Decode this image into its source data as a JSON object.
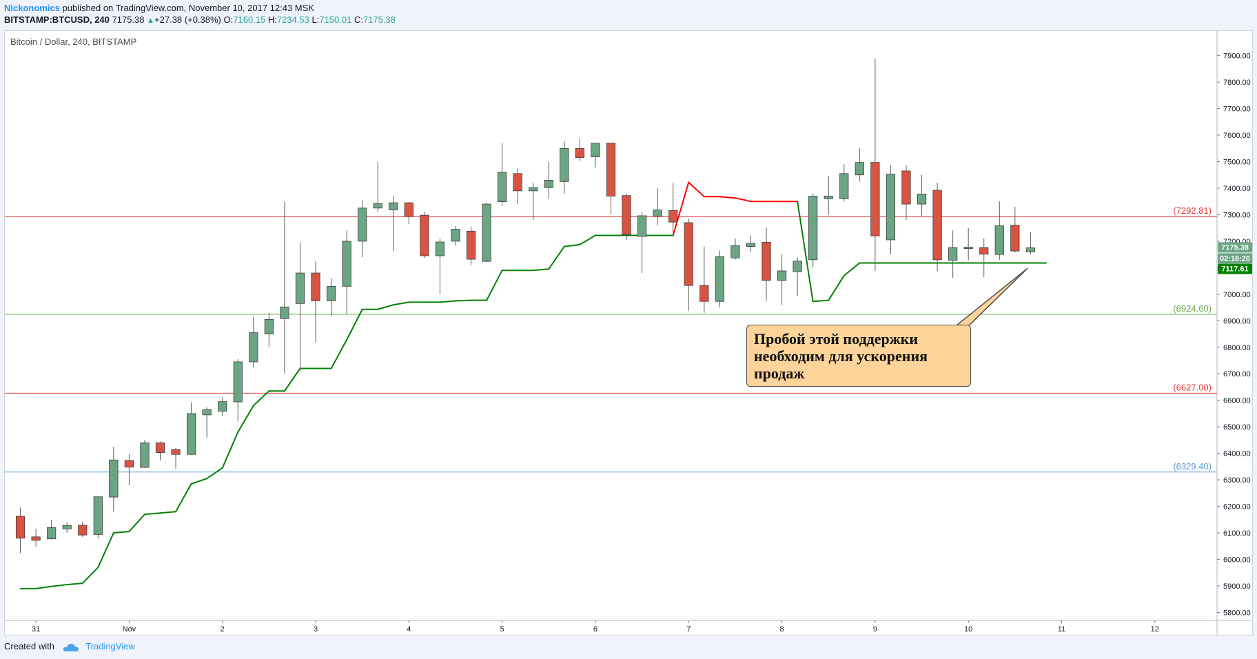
{
  "header": {
    "author": "Nickonomics",
    "published_text": "published on TradingView.com, November 10, 2017 12:43 MSK",
    "symbol": "BITSTAMP:BTCUSD, 240",
    "last": "7175.38",
    "change_arrow": "▲",
    "change": "+27.38 (+0.38%)",
    "o_label": "O:",
    "o_value": "7160.15",
    "h_label": "H:",
    "h_value": "7234.53",
    "l_label": "L:",
    "l_value": "7150.01",
    "c_label": "C:",
    "c_value": "7175.38"
  },
  "chart_title": "Bitcoin / Dollar, 240, BITSTAMP",
  "footer": {
    "created_with": "Created with",
    "brand": "TradingView"
  },
  "callout": {
    "line1": "Пробой этой поддержки",
    "line2": "необходим для ускорения",
    "line3": "продаж"
  },
  "colors": {
    "up_fill": "#6ba583",
    "down_fill": "#d75442",
    "wick": "#5b5b5b",
    "supertrend_up": "#008000",
    "supertrend_down": "#ff0000",
    "level_red": "#e53935",
    "level_green": "#6aa84f",
    "level_blue": "#5b9bd5",
    "callout_bg": "#fed49a"
  },
  "chart_data": {
    "type": "candlestick",
    "y_ticks": [
      "5800.00",
      "5900.00",
      "6000.00",
      "6100.00",
      "6200.00",
      "6300.00",
      "6400.00",
      "6500.00",
      "6600.00",
      "6700.00",
      "6800.00",
      "6900.00",
      "7000.00",
      "7100.00",
      "7200.00",
      "7300.00",
      "7400.00",
      "7500.00",
      "7600.00",
      "7700.00",
      "7800.00",
      "7900.00"
    ],
    "y_range": [
      5770,
      7990
    ],
    "x_ticks": [
      "31",
      "Nov",
      "2",
      "3",
      "4",
      "5",
      "6",
      "7",
      "8",
      "9",
      "10",
      "11",
      "12"
    ],
    "x_range": [
      "Oct 30 16:00",
      "Nov 12 16:00"
    ],
    "candles": [
      {
        "t": "Oct 30 20:00",
        "o": 6163,
        "h": 6195,
        "l": 6024,
        "c": 6080
      },
      {
        "t": "Oct 31 00:00",
        "o": 6085,
        "h": 6115,
        "l": 6048,
        "c": 6072
      },
      {
        "t": "Oct 31 04:00",
        "o": 6078,
        "h": 6150,
        "l": 6075,
        "c": 6120
      },
      {
        "t": "Oct 31 08:00",
        "o": 6115,
        "h": 6140,
        "l": 6100,
        "c": 6128
      },
      {
        "t": "Oct 31 12:00",
        "o": 6129,
        "h": 6142,
        "l": 6085,
        "c": 6092
      },
      {
        "t": "Oct 31 16:00",
        "o": 6094,
        "h": 6240,
        "l": 6080,
        "c": 6236
      },
      {
        "t": "Oct 31 20:00",
        "o": 6235,
        "h": 6425,
        "l": 6180,
        "c": 6375
      },
      {
        "t": "Nov 1 00:00",
        "o": 6373,
        "h": 6397,
        "l": 6280,
        "c": 6348
      },
      {
        "t": "Nov 1 04:00",
        "o": 6347,
        "h": 6450,
        "l": 6345,
        "c": 6440
      },
      {
        "t": "Nov 1 08:00",
        "o": 6440,
        "h": 6445,
        "l": 6373,
        "c": 6403
      },
      {
        "t": "Nov 1 12:00",
        "o": 6414,
        "h": 6420,
        "l": 6341,
        "c": 6396
      },
      {
        "t": "Nov 1 16:00",
        "o": 6396,
        "h": 6592,
        "l": 6394,
        "c": 6550
      },
      {
        "t": "Nov 1 20:00",
        "o": 6545,
        "h": 6573,
        "l": 6460,
        "c": 6565
      },
      {
        "t": "Nov 2 00:00",
        "o": 6559,
        "h": 6610,
        "l": 6540,
        "c": 6595
      },
      {
        "t": "Nov 2 04:00",
        "o": 6594,
        "h": 6755,
        "l": 6520,
        "c": 6745
      },
      {
        "t": "Nov 2 08:00",
        "o": 6745,
        "h": 6915,
        "l": 6723,
        "c": 6855
      },
      {
        "t": "Nov 2 12:00",
        "o": 6850,
        "h": 6930,
        "l": 6800,
        "c": 6905
      },
      {
        "t": "Nov 2 16:00",
        "o": 6908,
        "h": 7350,
        "l": 6700,
        "c": 6952
      },
      {
        "t": "Nov 2 20:00",
        "o": 6965,
        "h": 7195,
        "l": 6712,
        "c": 7080
      },
      {
        "t": "Nov 3 00:00",
        "o": 7080,
        "h": 7125,
        "l": 6820,
        "c": 6975
      },
      {
        "t": "Nov 3 04:00",
        "o": 6975,
        "h": 7060,
        "l": 6920,
        "c": 7030
      },
      {
        "t": "Nov 3 08:00",
        "o": 7030,
        "h": 7240,
        "l": 6925,
        "c": 7200
      },
      {
        "t": "Nov 3 12:00",
        "o": 7200,
        "h": 7355,
        "l": 7140,
        "c": 7325
      },
      {
        "t": "Nov 3 16:00",
        "o": 7325,
        "h": 7500,
        "l": 7310,
        "c": 7342
      },
      {
        "t": "Nov 3 20:00",
        "o": 7318,
        "h": 7372,
        "l": 7162,
        "c": 7345
      },
      {
        "t": "Nov 4 00:00",
        "o": 7345,
        "h": 7348,
        "l": 7264,
        "c": 7294
      },
      {
        "t": "Nov 4 04:00",
        "o": 7298,
        "h": 7310,
        "l": 7136,
        "c": 7145
      },
      {
        "t": "Nov 4 08:00",
        "o": 7145,
        "h": 7210,
        "l": 7000,
        "c": 7197
      },
      {
        "t": "Nov 4 12:00",
        "o": 7200,
        "h": 7258,
        "l": 7183,
        "c": 7245
      },
      {
        "t": "Nov 4 16:00",
        "o": 7238,
        "h": 7255,
        "l": 7111,
        "c": 7132
      },
      {
        "t": "Nov 4 20:00",
        "o": 7124,
        "h": 7345,
        "l": 7122,
        "c": 7340
      },
      {
        "t": "Nov 5 00:00",
        "o": 7349,
        "h": 7570,
        "l": 7334,
        "c": 7460
      },
      {
        "t": "Nov 5 04:00",
        "o": 7455,
        "h": 7474,
        "l": 7340,
        "c": 7390
      },
      {
        "t": "Nov 5 08:00",
        "o": 7390,
        "h": 7420,
        "l": 7280,
        "c": 7402
      },
      {
        "t": "Nov 5 12:00",
        "o": 7402,
        "h": 7500,
        "l": 7360,
        "c": 7430
      },
      {
        "t": "Nov 5 16:00",
        "o": 7425,
        "h": 7578,
        "l": 7380,
        "c": 7550
      },
      {
        "t": "Nov 5 20:00",
        "o": 7550,
        "h": 7588,
        "l": 7503,
        "c": 7515
      },
      {
        "t": "Nov 6 00:00",
        "o": 7518,
        "h": 7570,
        "l": 7478,
        "c": 7570
      },
      {
        "t": "Nov 6 04:00",
        "o": 7570,
        "h": 7568,
        "l": 7300,
        "c": 7370
      },
      {
        "t": "Nov 6 08:00",
        "o": 7372,
        "h": 7380,
        "l": 7205,
        "c": 7225
      },
      {
        "t": "Nov 6 12:00",
        "o": 7218,
        "h": 7310,
        "l": 7080,
        "c": 7296
      },
      {
        "t": "Nov 6 16:00",
        "o": 7295,
        "h": 7400,
        "l": 7260,
        "c": 7318
      },
      {
        "t": "Nov 6 20:00",
        "o": 7316,
        "h": 7420,
        "l": 7218,
        "c": 7272
      },
      {
        "t": "Nov 7 00:00",
        "o": 7270,
        "h": 7285,
        "l": 6938,
        "c": 7033
      },
      {
        "t": "Nov 7 04:00",
        "o": 7033,
        "h": 7180,
        "l": 6930,
        "c": 6973
      },
      {
        "t": "Nov 7 08:00",
        "o": 6973,
        "h": 7165,
        "l": 6950,
        "c": 7142
      },
      {
        "t": "Nov 7 12:00",
        "o": 7137,
        "h": 7210,
        "l": 7130,
        "c": 7183
      },
      {
        "t": "Nov 7 16:00",
        "o": 7180,
        "h": 7222,
        "l": 7160,
        "c": 7192
      },
      {
        "t": "Nov 7 20:00",
        "o": 7196,
        "h": 7252,
        "l": 6975,
        "c": 7052
      },
      {
        "t": "Nov 8 00:00",
        "o": 7052,
        "h": 7150,
        "l": 6960,
        "c": 7088
      },
      {
        "t": "Nov 8 04:00",
        "o": 7085,
        "h": 7140,
        "l": 6993,
        "c": 7125
      },
      {
        "t": "Nov 8 08:00",
        "o": 7130,
        "h": 7380,
        "l": 7100,
        "c": 7370
      },
      {
        "t": "Nov 8 12:00",
        "o": 7360,
        "h": 7445,
        "l": 7300,
        "c": 7370
      },
      {
        "t": "Nov 8 16:00",
        "o": 7360,
        "h": 7490,
        "l": 7350,
        "c": 7455
      },
      {
        "t": "Nov 8 20:00",
        "o": 7450,
        "h": 7550,
        "l": 7425,
        "c": 7497
      },
      {
        "t": "Nov 9 00:00",
        "o": 7497,
        "h": 7890,
        "l": 7087,
        "c": 7220
      },
      {
        "t": "Nov 9 04:00",
        "o": 7205,
        "h": 7487,
        "l": 7150,
        "c": 7453
      },
      {
        "t": "Nov 9 08:00",
        "o": 7465,
        "h": 7487,
        "l": 7280,
        "c": 7340
      },
      {
        "t": "Nov 9 12:00",
        "o": 7340,
        "h": 7450,
        "l": 7295,
        "c": 7378
      },
      {
        "t": "Nov 9 16:00",
        "o": 7392,
        "h": 7420,
        "l": 7087,
        "c": 7130
      },
      {
        "t": "Nov 9 20:00",
        "o": 7128,
        "h": 7240,
        "l": 7062,
        "c": 7176
      },
      {
        "t": "Nov 10 00:00",
        "o": 7172,
        "h": 7250,
        "l": 7127,
        "c": 7178
      },
      {
        "t": "Nov 10 04:00",
        "o": 7176,
        "h": 7210,
        "l": 7065,
        "c": 7151
      },
      {
        "t": "Nov 10 08:00",
        "o": 7150,
        "h": 7350,
        "l": 7130,
        "c": 7258
      },
      {
        "t": "Nov 10 12:00",
        "o": 7260,
        "h": 7330,
        "l": 7158,
        "c": 7163
      },
      {
        "t": "Nov 10 16:00",
        "o": 7160,
        "h": 7235,
        "l": 7150,
        "c": 7175
      }
    ],
    "supertrend": [
      {
        "t": "Oct 30 20:00",
        "v": 5890,
        "trend": "up"
      },
      {
        "t": "Oct 31 00:00",
        "v": 5890,
        "trend": "up"
      },
      {
        "t": "Oct 31 04:00",
        "v": 5898,
        "trend": "up"
      },
      {
        "t": "Oct 31 08:00",
        "v": 5905,
        "trend": "up"
      },
      {
        "t": "Oct 31 12:00",
        "v": 5910,
        "trend": "up"
      },
      {
        "t": "Oct 31 16:00",
        "v": 5970,
        "trend": "up"
      },
      {
        "t": "Oct 31 20:00",
        "v": 6100,
        "trend": "up"
      },
      {
        "t": "Nov 1 00:00",
        "v": 6105,
        "trend": "up"
      },
      {
        "t": "Nov 1 04:00",
        "v": 6170,
        "trend": "up"
      },
      {
        "t": "Nov 1 08:00",
        "v": 6175,
        "trend": "up"
      },
      {
        "t": "Nov 1 12:00",
        "v": 6180,
        "trend": "up"
      },
      {
        "t": "Nov 1 16:00",
        "v": 6285,
        "trend": "up"
      },
      {
        "t": "Nov 1 20:00",
        "v": 6305,
        "trend": "up"
      },
      {
        "t": "Nov 2 00:00",
        "v": 6345,
        "trend": "up"
      },
      {
        "t": "Nov 2 04:00",
        "v": 6480,
        "trend": "up"
      },
      {
        "t": "Nov 2 08:00",
        "v": 6580,
        "trend": "up"
      },
      {
        "t": "Nov 2 12:00",
        "v": 6635,
        "trend": "up"
      },
      {
        "t": "Nov 2 16:00",
        "v": 6635,
        "trend": "up"
      },
      {
        "t": "Nov 2 20:00",
        "v": 6720,
        "trend": "up"
      },
      {
        "t": "Nov 3 00:00",
        "v": 6720,
        "trend": "up"
      },
      {
        "t": "Nov 3 04:00",
        "v": 6720,
        "trend": "up"
      },
      {
        "t": "Nov 3 08:00",
        "v": 6828,
        "trend": "up"
      },
      {
        "t": "Nov 3 12:00",
        "v": 6943,
        "trend": "up"
      },
      {
        "t": "Nov 3 16:00",
        "v": 6943,
        "trend": "up"
      },
      {
        "t": "Nov 3 20:00",
        "v": 6960,
        "trend": "up"
      },
      {
        "t": "Nov 4 00:00",
        "v": 6970,
        "trend": "up"
      },
      {
        "t": "Nov 4 04:00",
        "v": 6970,
        "trend": "up"
      },
      {
        "t": "Nov 4 08:00",
        "v": 6970,
        "trend": "up"
      },
      {
        "t": "Nov 4 12:00",
        "v": 6975,
        "trend": "up"
      },
      {
        "t": "Nov 4 16:00",
        "v": 6977,
        "trend": "up"
      },
      {
        "t": "Nov 4 20:00",
        "v": 6977,
        "trend": "up"
      },
      {
        "t": "Nov 5 00:00",
        "v": 7090,
        "trend": "up"
      },
      {
        "t": "Nov 5 04:00",
        "v": 7090,
        "trend": "up"
      },
      {
        "t": "Nov 5 08:00",
        "v": 7090,
        "trend": "up"
      },
      {
        "t": "Nov 5 12:00",
        "v": 7095,
        "trend": "up"
      },
      {
        "t": "Nov 5 16:00",
        "v": 7180,
        "trend": "up"
      },
      {
        "t": "Nov 5 20:00",
        "v": 7187,
        "trend": "up"
      },
      {
        "t": "Nov 6 00:00",
        "v": 7222,
        "trend": "up"
      },
      {
        "t": "Nov 6 04:00",
        "v": 7222,
        "trend": "up"
      },
      {
        "t": "Nov 6 08:00",
        "v": 7222,
        "trend": "up"
      },
      {
        "t": "Nov 6 12:00",
        "v": 7222,
        "trend": "up"
      },
      {
        "t": "Nov 6 16:00",
        "v": 7222,
        "trend": "up"
      },
      {
        "t": "Nov 6 20:00",
        "v": 7222,
        "trend": "up"
      },
      {
        "t": "Nov 7 00:00",
        "v": 7422,
        "trend": "down"
      },
      {
        "t": "Nov 7 04:00",
        "v": 7368,
        "trend": "down"
      },
      {
        "t": "Nov 7 08:00",
        "v": 7368,
        "trend": "down"
      },
      {
        "t": "Nov 7 12:00",
        "v": 7363,
        "trend": "down"
      },
      {
        "t": "Nov 7 16:00",
        "v": 7350,
        "trend": "down"
      },
      {
        "t": "Nov 7 20:00",
        "v": 7350,
        "trend": "down"
      },
      {
        "t": "Nov 8 00:00",
        "v": 7350,
        "trend": "down"
      },
      {
        "t": "Nov 8 04:00",
        "v": 7350,
        "trend": "down"
      },
      {
        "t": "Nov 8 08:00",
        "v": 6973,
        "trend": "up"
      },
      {
        "t": "Nov 8 12:00",
        "v": 6977,
        "trend": "up"
      },
      {
        "t": "Nov 8 16:00",
        "v": 7070,
        "trend": "up"
      },
      {
        "t": "Nov 8 20:00",
        "v": 7118,
        "trend": "up"
      },
      {
        "t": "Nov 9 00:00",
        "v": 7118,
        "trend": "up"
      },
      {
        "t": "Nov 9 04:00",
        "v": 7118,
        "trend": "up"
      },
      {
        "t": "Nov 9 08:00",
        "v": 7118,
        "trend": "up"
      },
      {
        "t": "Nov 9 12:00",
        "v": 7118,
        "trend": "up"
      },
      {
        "t": "Nov 9 16:00",
        "v": 7118,
        "trend": "up"
      },
      {
        "t": "Nov 9 20:00",
        "v": 7118,
        "trend": "up"
      },
      {
        "t": "Nov 10 00:00",
        "v": 7118,
        "trend": "up"
      },
      {
        "t": "Nov 10 04:00",
        "v": 7118,
        "trend": "up"
      },
      {
        "t": "Nov 10 08:00",
        "v": 7118,
        "trend": "up"
      },
      {
        "t": "Nov 10 12:00",
        "v": 7118,
        "trend": "up"
      },
      {
        "t": "Nov 10 16:00",
        "v": 7118,
        "trend": "up"
      },
      {
        "t": "Nov 10 20:00",
        "v": 7118,
        "trend": "up"
      }
    ],
    "levels": [
      {
        "value": 7292.81,
        "label": "(7292.81)",
        "color": "#e53935"
      },
      {
        "value": 6924.6,
        "label": "(6924.60)",
        "color": "#6aa84f"
      },
      {
        "value": 6627.0,
        "label": "(6627.00)",
        "color": "#e53935"
      },
      {
        "value": 6329.4,
        "label": "(6329.40)",
        "color": "#5b9bd5"
      }
    ],
    "price_badges": [
      {
        "value": 7175.38,
        "label": "7175.38",
        "color": "#6ba583"
      },
      {
        "label": "02:16:20",
        "color": "#6ba583",
        "at_value": 7175.38
      },
      {
        "value": 7117.61,
        "label": "7117.61",
        "color": "#008000"
      }
    ],
    "grid": false,
    "annotation_arrow": {
      "from_value_time": "Nov 10 04:00",
      "to": {
        "t": "Nov 10 12:00",
        "v": 7118
      }
    }
  }
}
